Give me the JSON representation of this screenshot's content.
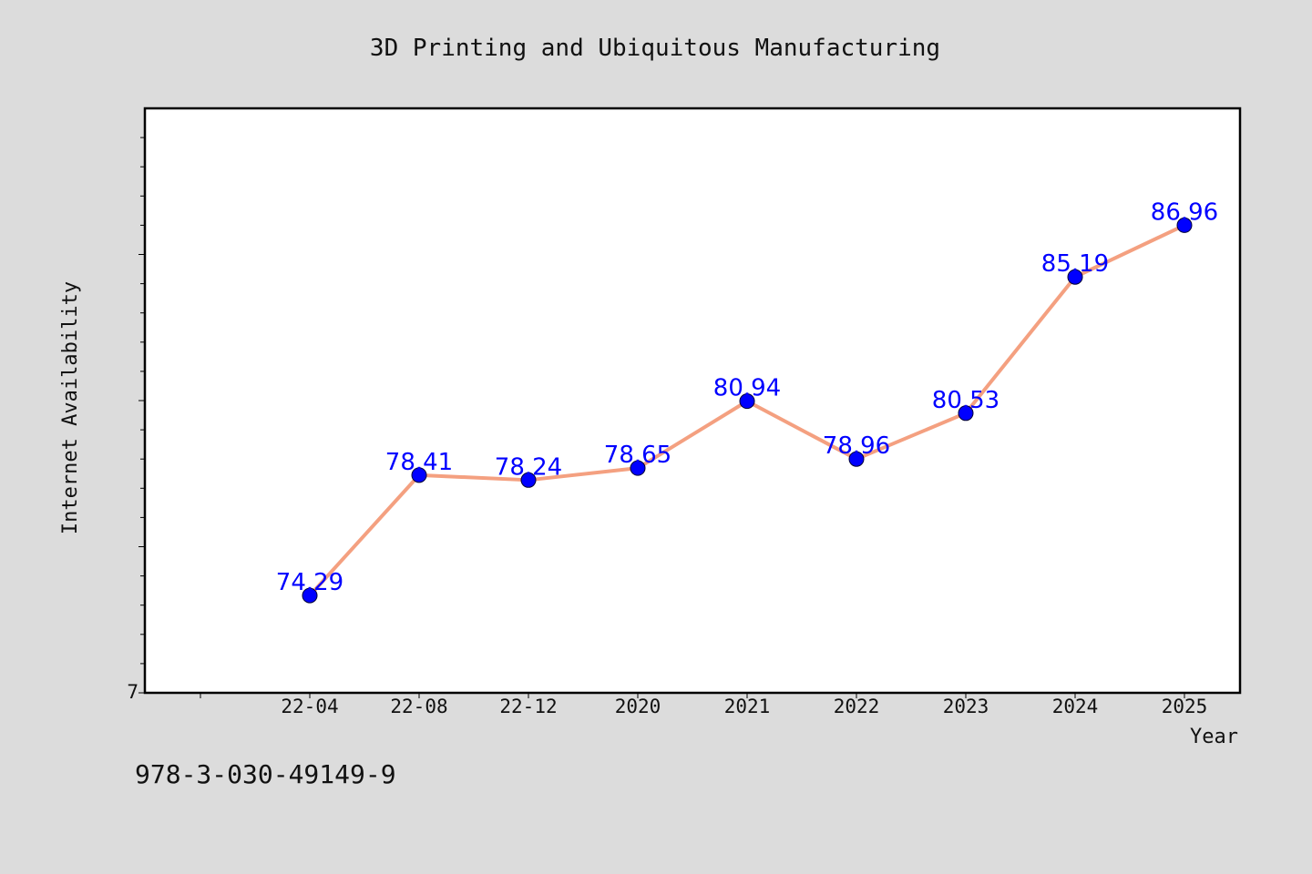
{
  "chart_data": {
    "type": "line",
    "title": "3D Printing and Ubiquitous Manufacturing",
    "xlabel": "Year",
    "ylabel": "Internet Availability",
    "categories": [
      "22-04",
      "22-08",
      "22-12",
      "2020",
      "2021",
      "2022",
      "2023",
      "2024",
      "2025"
    ],
    "series": [
      {
        "values": [
          74.29,
          78.41,
          78.24,
          78.65,
          80.94,
          78.96,
          80.53,
          85.19,
          86.96
        ]
      }
    ],
    "data_labels": [
      "74.29",
      "78.41",
      "78.24",
      "78.65",
      "80.94",
      "78.96",
      "80.53",
      "85.19",
      "86.96"
    ],
    "ylim": [
      70.96,
      90.96
    ],
    "y_tick_label": "7",
    "grid": false,
    "line_color": "#f4a080",
    "marker_color": "#0000ff",
    "label_color": "#0000ff",
    "plot_background": "#ffffff",
    "page_background": "#dcdcdc"
  },
  "footer": {
    "isbn": "978-3-030-49149-9"
  }
}
